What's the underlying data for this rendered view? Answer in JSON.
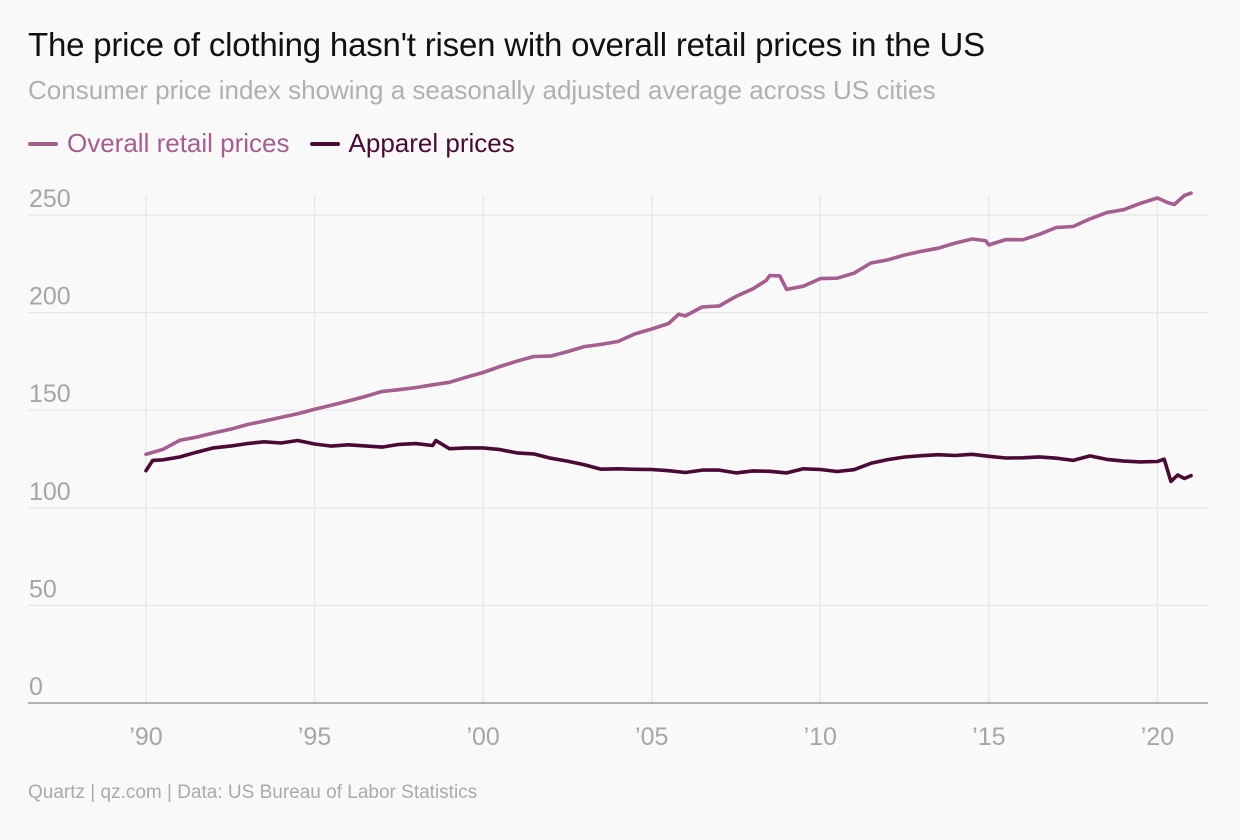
{
  "title": "The price of clothing hasn't risen with overall retail prices in the US",
  "subtitle": "Consumer price index showing a seasonally adjusted average across US cities",
  "source": "Quartz | qz.com | Data: US Bureau of Labor Statistics",
  "colors": {
    "overall": "#a65d8f",
    "apparel": "#4a0a35",
    "grid": "#e6e6e6",
    "axis": "#9a9a9a",
    "tick_label": "#a6a6a6"
  },
  "chart_data": {
    "type": "line",
    "title": "The price of clothing hasn't risen with overall retail prices in the US",
    "subtitle": "Consumer price index showing a seasonally adjusted average across US cities",
    "xlabel": "",
    "ylabel": "",
    "xlim": [
      1986.5,
      2021.5
    ],
    "ylim": [
      0,
      250
    ],
    "grid": true,
    "legend_position": "top-left",
    "x_ticks": [
      1990,
      1995,
      2000,
      2005,
      2010,
      2015,
      2020
    ],
    "x_tick_labels": [
      "’90",
      "’95",
      "’00",
      "’05",
      "’10",
      "’15",
      "’20"
    ],
    "y_ticks": [
      0,
      50,
      100,
      150,
      200,
      250
    ],
    "y_tick_labels": [
      "0",
      "50",
      "100",
      "150",
      "200",
      "250"
    ],
    "series": [
      {
        "name": "Overall retail prices",
        "color": "#a65d8f",
        "points": [
          [
            1990.0,
            127.4
          ],
          [
            1990.5,
            129.9
          ],
          [
            1991.0,
            134.6
          ],
          [
            1991.5,
            136.2
          ],
          [
            1992.0,
            138.3
          ],
          [
            1992.5,
            140.2
          ],
          [
            1993.0,
            142.6
          ],
          [
            1993.5,
            144.4
          ],
          [
            1994.0,
            146.3
          ],
          [
            1994.5,
            148.2
          ],
          [
            1995.0,
            150.5
          ],
          [
            1995.5,
            152.5
          ],
          [
            1996.0,
            154.7
          ],
          [
            1996.5,
            157.0
          ],
          [
            1997.0,
            159.6
          ],
          [
            1997.5,
            160.5
          ],
          [
            1998.0,
            161.6
          ],
          [
            1998.5,
            163.0
          ],
          [
            1999.0,
            164.3
          ],
          [
            1999.5,
            166.9
          ],
          [
            2000.0,
            169.3
          ],
          [
            2000.5,
            172.4
          ],
          [
            2001.0,
            175.1
          ],
          [
            2001.5,
            177.5
          ],
          [
            2002.0,
            177.7
          ],
          [
            2002.5,
            180.0
          ],
          [
            2003.0,
            182.6
          ],
          [
            2003.5,
            183.7
          ],
          [
            2004.0,
            185.2
          ],
          [
            2004.5,
            189.1
          ],
          [
            2005.0,
            191.6
          ],
          [
            2005.5,
            194.4
          ],
          [
            2005.8,
            199.2
          ],
          [
            2006.0,
            198.3
          ],
          [
            2006.5,
            202.9
          ],
          [
            2007.0,
            203.4
          ],
          [
            2007.5,
            208.3
          ],
          [
            2008.0,
            212.2
          ],
          [
            2008.4,
            216.5
          ],
          [
            2008.5,
            219.0
          ],
          [
            2008.8,
            218.8
          ],
          [
            2009.0,
            211.9
          ],
          [
            2009.5,
            213.5
          ],
          [
            2010.0,
            217.4
          ],
          [
            2010.5,
            217.6
          ],
          [
            2011.0,
            220.2
          ],
          [
            2011.5,
            225.4
          ],
          [
            2012.0,
            227.0
          ],
          [
            2012.5,
            229.5
          ],
          [
            2013.0,
            231.4
          ],
          [
            2013.5,
            233.0
          ],
          [
            2014.0,
            235.6
          ],
          [
            2014.5,
            237.7
          ],
          [
            2014.9,
            236.9
          ],
          [
            2015.0,
            234.7
          ],
          [
            2015.5,
            237.4
          ],
          [
            2016.0,
            237.3
          ],
          [
            2016.5,
            240.1
          ],
          [
            2017.0,
            243.6
          ],
          [
            2017.5,
            244.1
          ],
          [
            2018.0,
            248.0
          ],
          [
            2018.5,
            251.3
          ],
          [
            2019.0,
            252.7
          ],
          [
            2019.5,
            256.0
          ],
          [
            2020.0,
            258.7
          ],
          [
            2020.3,
            256.4
          ],
          [
            2020.5,
            255.4
          ],
          [
            2020.8,
            260.0
          ],
          [
            2021.0,
            261.2
          ]
        ]
      },
      {
        "name": "Apparel prices",
        "color": "#4a0a35",
        "points": [
          [
            1990.0,
            119.0
          ],
          [
            1990.2,
            124.3
          ],
          [
            1990.5,
            124.6
          ],
          [
            1991.0,
            126.0
          ],
          [
            1991.5,
            128.5
          ],
          [
            1992.0,
            130.7
          ],
          [
            1992.5,
            131.6
          ],
          [
            1993.0,
            132.9
          ],
          [
            1993.5,
            133.8
          ],
          [
            1994.0,
            133.2
          ],
          [
            1994.5,
            134.5
          ],
          [
            1995.0,
            132.7
          ],
          [
            1995.5,
            131.6
          ],
          [
            1996.0,
            132.3
          ],
          [
            1996.5,
            131.7
          ],
          [
            1997.0,
            131.1
          ],
          [
            1997.5,
            132.5
          ],
          [
            1998.0,
            132.9
          ],
          [
            1998.5,
            131.9
          ],
          [
            1998.6,
            134.5
          ],
          [
            1999.0,
            130.3
          ],
          [
            1999.5,
            130.7
          ],
          [
            2000.0,
            130.7
          ],
          [
            2000.5,
            129.8
          ],
          [
            2001.0,
            128.1
          ],
          [
            2001.5,
            127.6
          ],
          [
            2002.0,
            125.4
          ],
          [
            2002.5,
            123.9
          ],
          [
            2003.0,
            122.1
          ],
          [
            2003.5,
            119.8
          ],
          [
            2004.0,
            120.0
          ],
          [
            2004.5,
            119.7
          ],
          [
            2005.0,
            119.6
          ],
          [
            2005.5,
            119.0
          ],
          [
            2006.0,
            118.1
          ],
          [
            2006.5,
            119.3
          ],
          [
            2007.0,
            119.3
          ],
          [
            2007.5,
            117.9
          ],
          [
            2008.0,
            118.9
          ],
          [
            2008.5,
            118.7
          ],
          [
            2009.0,
            117.9
          ],
          [
            2009.5,
            120.0
          ],
          [
            2010.0,
            119.6
          ],
          [
            2010.5,
            118.6
          ],
          [
            2011.0,
            119.5
          ],
          [
            2011.5,
            122.8
          ],
          [
            2012.0,
            124.7
          ],
          [
            2012.5,
            126.0
          ],
          [
            2013.0,
            126.7
          ],
          [
            2013.5,
            127.2
          ],
          [
            2014.0,
            126.8
          ],
          [
            2014.5,
            127.4
          ],
          [
            2015.0,
            126.4
          ],
          [
            2015.5,
            125.5
          ],
          [
            2016.0,
            125.6
          ],
          [
            2016.5,
            126.1
          ],
          [
            2017.0,
            125.4
          ],
          [
            2017.5,
            124.3
          ],
          [
            2018.0,
            126.6
          ],
          [
            2018.5,
            124.8
          ],
          [
            2019.0,
            123.9
          ],
          [
            2019.5,
            123.5
          ],
          [
            2020.0,
            123.7
          ],
          [
            2020.2,
            124.9
          ],
          [
            2020.4,
            113.5
          ],
          [
            2020.6,
            116.8
          ],
          [
            2020.8,
            115.0
          ],
          [
            2021.0,
            116.5
          ]
        ]
      }
    ]
  }
}
